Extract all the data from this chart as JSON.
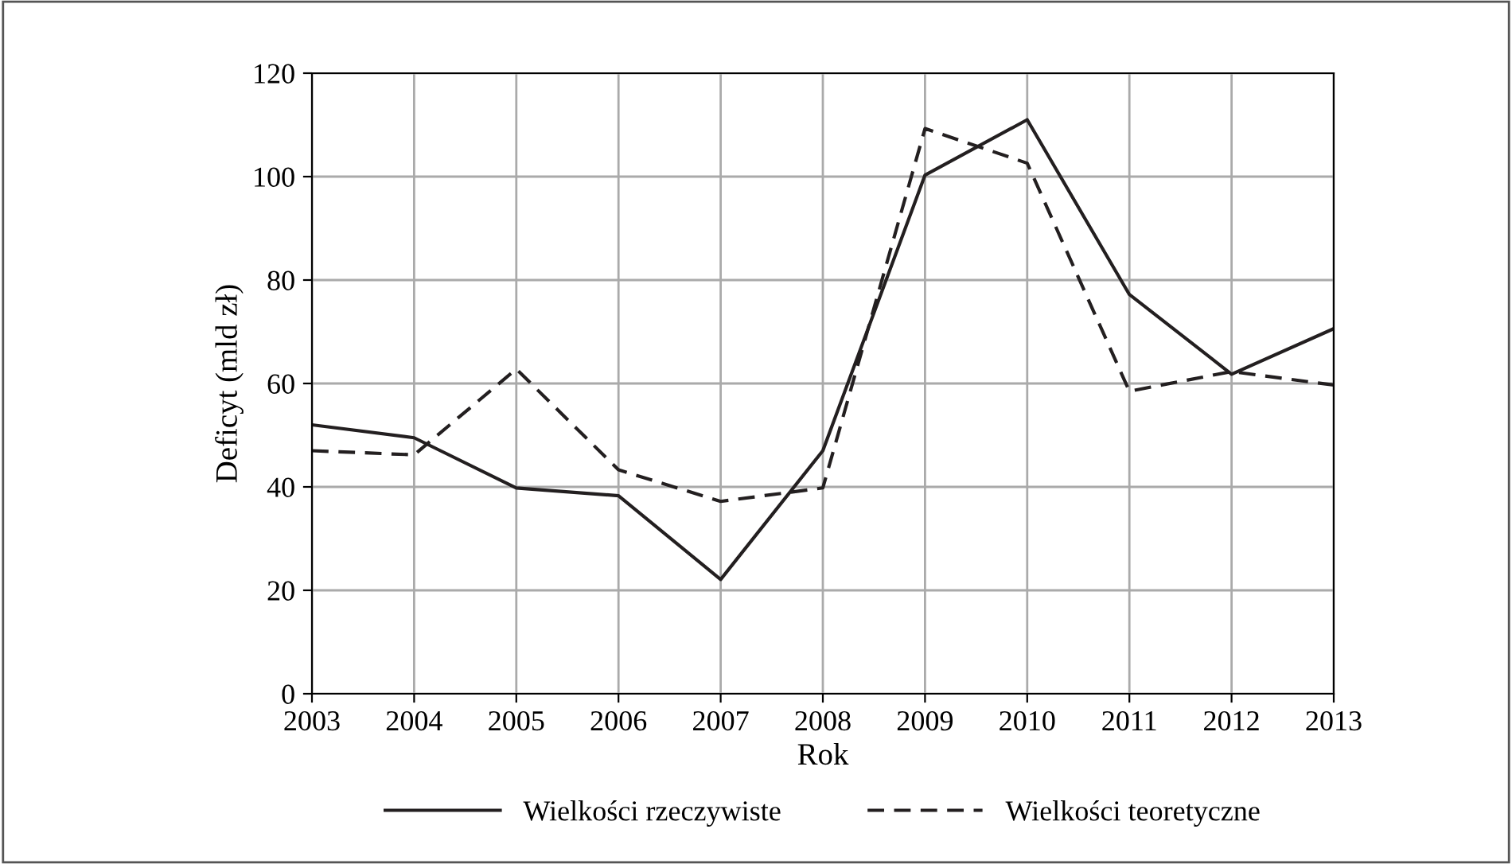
{
  "chart_data": {
    "type": "line",
    "xlabel": "Rok",
    "ylabel": "Deficyt (mld zł)",
    "x": [
      2003,
      2004,
      2005,
      2006,
      2007,
      2008,
      2009,
      2010,
      2011,
      2012,
      2013
    ],
    "series": [
      {
        "name": "Wielkości rzeczywiste",
        "color": "#231f20",
        "line_style": "solid",
        "values": [
          52.0,
          49.5,
          39.8,
          38.3,
          22.1,
          47.0,
          100.3,
          111.0,
          77.2,
          61.8,
          70.6
        ]
      },
      {
        "name": "Wielkości teoretyczne",
        "color": "#231f20",
        "line_style": "dashed",
        "values": [
          47.0,
          46.2,
          62.8,
          43.3,
          37.2,
          39.8,
          109.3,
          102.6,
          58.5,
          62.3,
          59.7
        ]
      }
    ],
    "xlim": [
      2003,
      2013
    ],
    "xticks": [
      2003,
      2004,
      2005,
      2006,
      2007,
      2008,
      2009,
      2010,
      2011,
      2012,
      2013
    ],
    "ylim": [
      0,
      120
    ],
    "yticks": [
      0,
      20,
      40,
      60,
      80,
      100,
      120
    ],
    "grid": true,
    "legend": "bottom",
    "marker": "none"
  }
}
